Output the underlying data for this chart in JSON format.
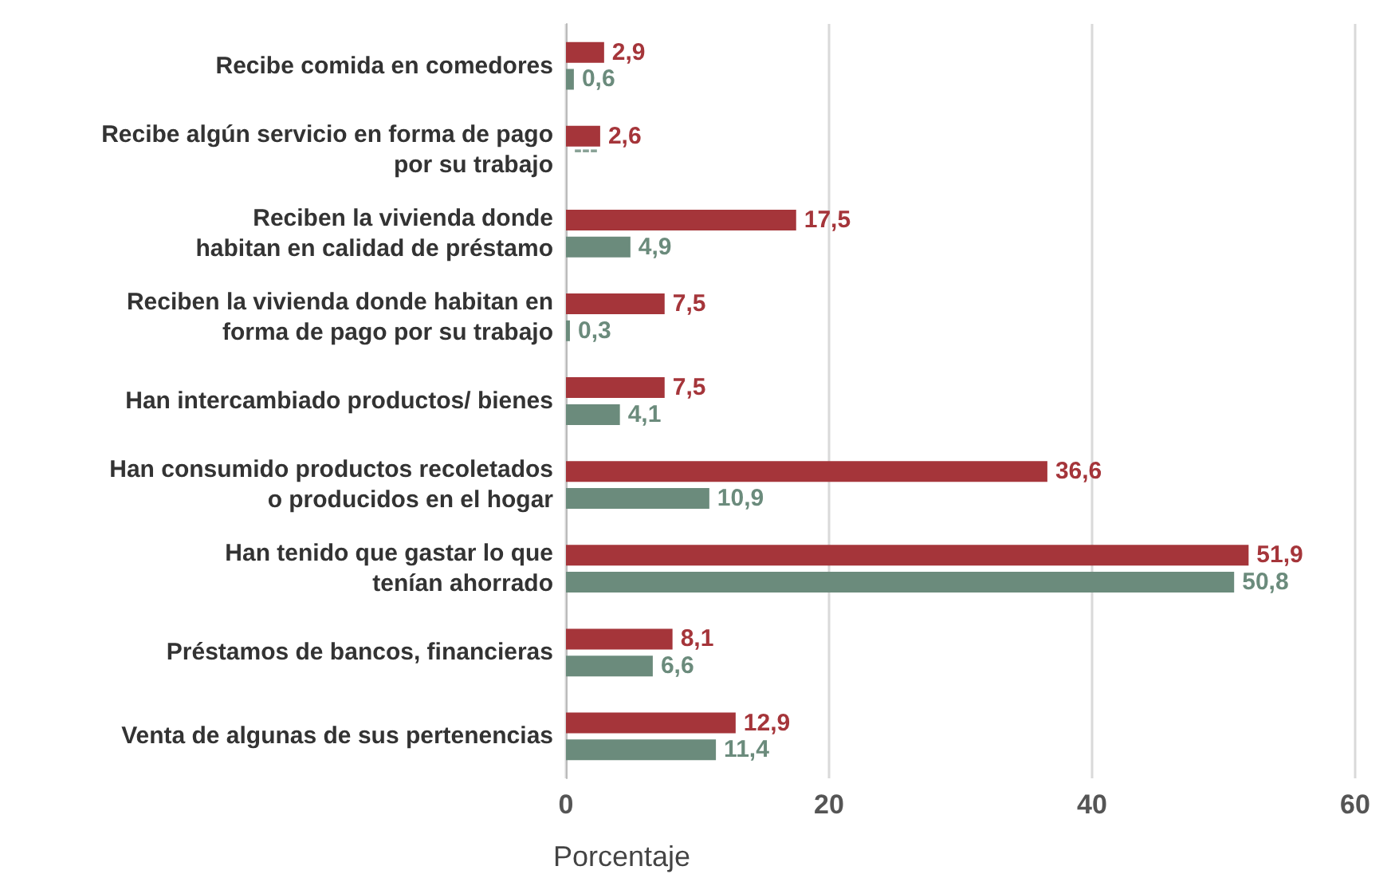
{
  "chart_data": {
    "type": "bar",
    "orientation": "horizontal",
    "xlabel": "Porcentaje",
    "categories": [
      "Recibe comida en comedores",
      "Recibe algún servicio en forma de pago\npor su trabajo",
      "Reciben la vivienda donde\nhabitan en calidad de préstamo",
      "Reciben la vivienda donde habitan en\nforma de pago por su trabajo",
      "Han intercambiado productos/ bienes",
      "Han consumido productos recoletados\no producidos en el hogar",
      "Han tenido que gastar lo que\ntenían ahorrado",
      "Préstamos de bancos, financieras",
      "Venta de algunas de sus pertenencias"
    ],
    "series": [
      {
        "color": "#a5353a",
        "values": [
          2.9,
          2.6,
          17.5,
          7.5,
          7.5,
          36.6,
          51.9,
          8.1,
          12.9
        ],
        "value_labels": [
          "2,9",
          "2,6",
          "17,5",
          "7,5",
          "7,5",
          "36,6",
          "51,9",
          "8,1",
          "12,9"
        ]
      },
      {
        "color": "#6b8b7c",
        "values": [
          0.6,
          null,
          4.9,
          0.3,
          4.1,
          10.9,
          50.8,
          6.6,
          11.4
        ],
        "value_labels": [
          "0,6",
          "---",
          "4,9",
          "0,3",
          "4,1",
          "10,9",
          "50,8",
          "6,6",
          "11,4"
        ]
      }
    ],
    "xlim": [
      0,
      60
    ],
    "xticks": [
      0,
      20,
      40,
      60
    ],
    "grid": "x"
  }
}
